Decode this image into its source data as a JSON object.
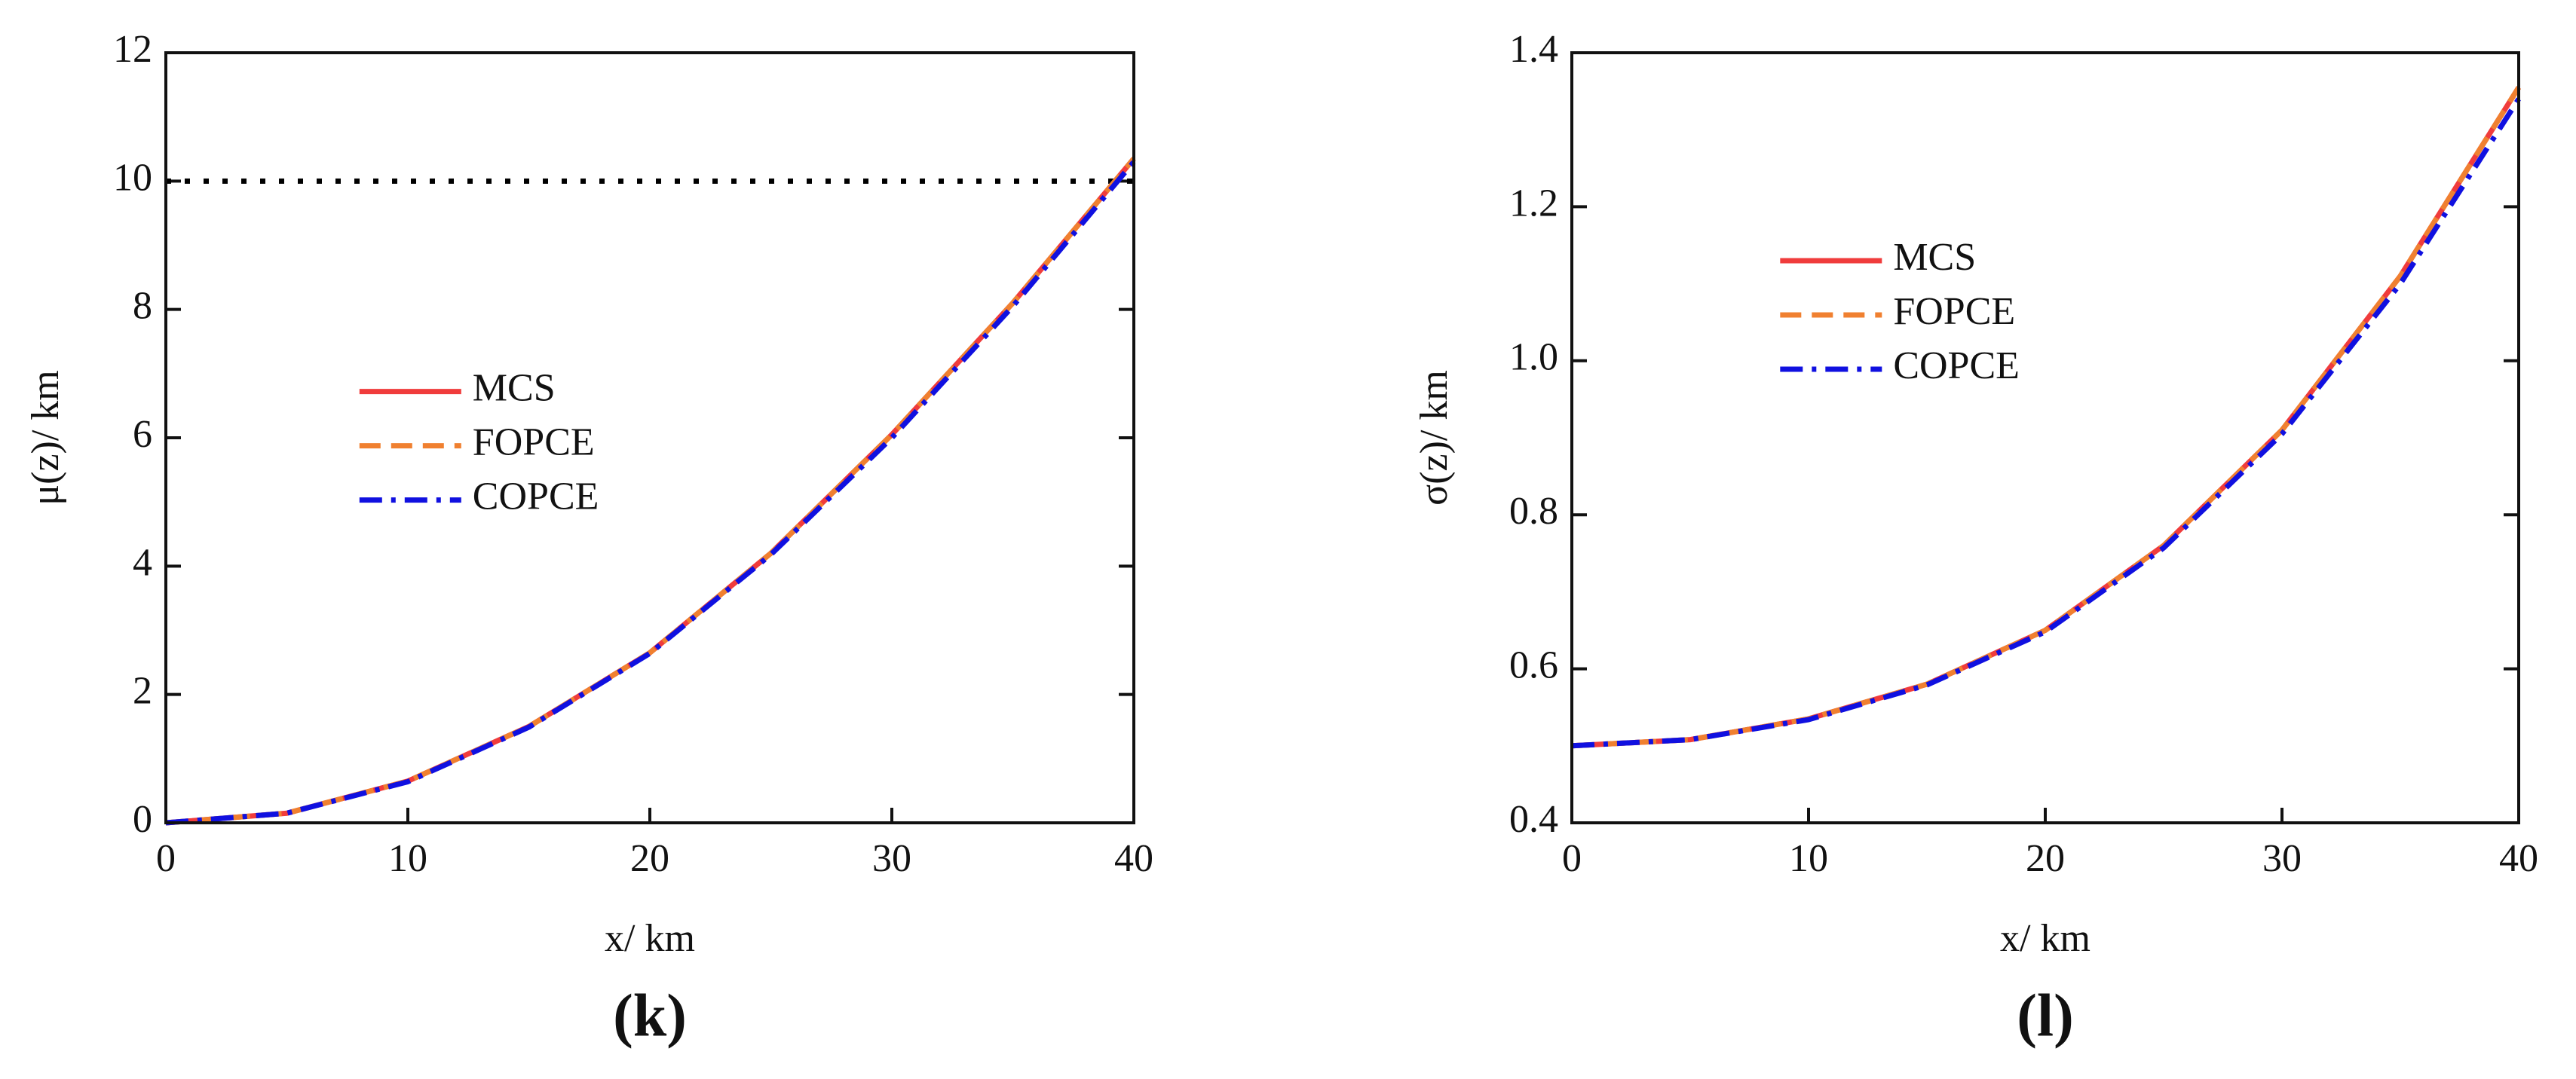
{
  "chart_data": [
    {
      "type": "line",
      "panel_label": "(k)",
      "xlabel": "x/ km",
      "ylabel": "μ(z)/ km",
      "x": [
        0,
        5,
        10,
        15,
        20,
        25,
        30,
        35,
        40
      ],
      "series": [
        {
          "name": "MCS",
          "color": "#f03c3c",
          "style": "solid",
          "values": [
            0,
            0.15,
            0.65,
            1.5,
            2.65,
            4.2,
            6.05,
            8.1,
            10.35
          ]
        },
        {
          "name": "FOPCE",
          "color": "#f08030",
          "style": "dashed",
          "values": [
            0,
            0.15,
            0.65,
            1.5,
            2.65,
            4.2,
            6.05,
            8.1,
            10.35
          ]
        },
        {
          "name": "COPCE",
          "color": "#1010e0",
          "style": "dashdot",
          "values": [
            0,
            0.15,
            0.64,
            1.49,
            2.64,
            4.18,
            6.0,
            8.05,
            10.3
          ]
        }
      ],
      "reference_line": 10,
      "xlim": [
        0,
        40
      ],
      "xticks": [
        0,
        10,
        20,
        30,
        40
      ],
      "ylim": [
        0,
        12
      ],
      "yticks": [
        0,
        2,
        4,
        6,
        8,
        10,
        12
      ],
      "legend": "center left"
    },
    {
      "type": "line",
      "panel_label": "(l)",
      "xlabel": "x/ km",
      "ylabel": "σ(z)/ km",
      "x": [
        0,
        5,
        10,
        15,
        20,
        25,
        30,
        35,
        40
      ],
      "series": [
        {
          "name": "MCS",
          "color": "#f03c3c",
          "style": "solid",
          "values": [
            0.5,
            0.508,
            0.535,
            0.58,
            0.65,
            0.76,
            0.91,
            1.11,
            1.355
          ]
        },
        {
          "name": "FOPCE",
          "color": "#f08030",
          "style": "dashed",
          "values": [
            0.5,
            0.508,
            0.535,
            0.58,
            0.65,
            0.76,
            0.91,
            1.11,
            1.355
          ]
        },
        {
          "name": "COPCE",
          "color": "#1010e0",
          "style": "dashdot",
          "values": [
            0.5,
            0.508,
            0.534,
            0.579,
            0.648,
            0.757,
            0.905,
            1.1,
            1.34
          ]
        }
      ],
      "xlim": [
        0,
        40
      ],
      "xticks": [
        0,
        10,
        20,
        30,
        40
      ],
      "ylim": [
        0.4,
        1.4
      ],
      "yticks": [
        0.4,
        0.6,
        0.8,
        {
          "value": 1,
          "label": "1.0"
        },
        1.2,
        1.4
      ],
      "legend": "upper left"
    }
  ]
}
